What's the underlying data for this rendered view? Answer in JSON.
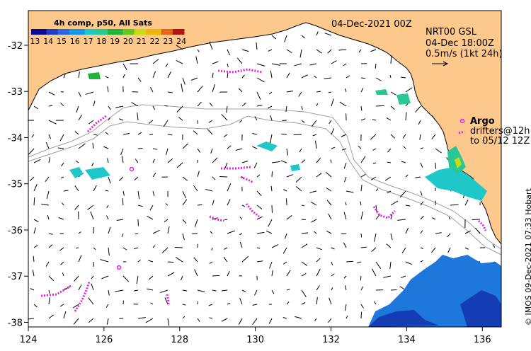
{
  "map": {
    "date_label": "04-Dec-2021 00Z",
    "product": "NRT00 GSL",
    "product_time": "04-Dec 18:00Z",
    "scale_label": "0.5m/s (1kt 24h)",
    "argo_label": "Argo",
    "drifters_label": "drifters@12h",
    "drifters_to": "to 05/12 12Z",
    "credit": "© IMOS 09-Dec-2021 07:33 Hobart"
  },
  "colorbar": {
    "title": "4h comp, p50, All Sats",
    "ticks": [
      "13",
      "14",
      "15",
      "16",
      "17",
      "18",
      "19",
      "20",
      "21",
      "22",
      "23",
      "24"
    ],
    "colors": [
      "#0a0a96",
      "#1e3cc8",
      "#2864e6",
      "#1496e6",
      "#1ec8c8",
      "#28c896",
      "#1eb43c",
      "#64c81e",
      "#c8dc14",
      "#f0b40a",
      "#e66414",
      "#b41414"
    ]
  },
  "axes": {
    "lon": [
      124,
      126,
      128,
      130,
      132,
      134,
      136
    ],
    "lat": [
      -32,
      -33,
      -34,
      -35,
      -36,
      -37,
      -38
    ],
    "lon_labels": [
      "124",
      "126",
      "128",
      "130",
      "132",
      "134",
      "136"
    ],
    "lat_labels": [
      "-32",
      "-33",
      "-34",
      "-35",
      "-36",
      "-37",
      "-38"
    ]
  },
  "colors": {
    "land": "#fcc88c",
    "contour": "#a0a0a0",
    "arrows": "#000000",
    "drifter": "#e61ee6",
    "argo": "#e61ee6"
  }
}
